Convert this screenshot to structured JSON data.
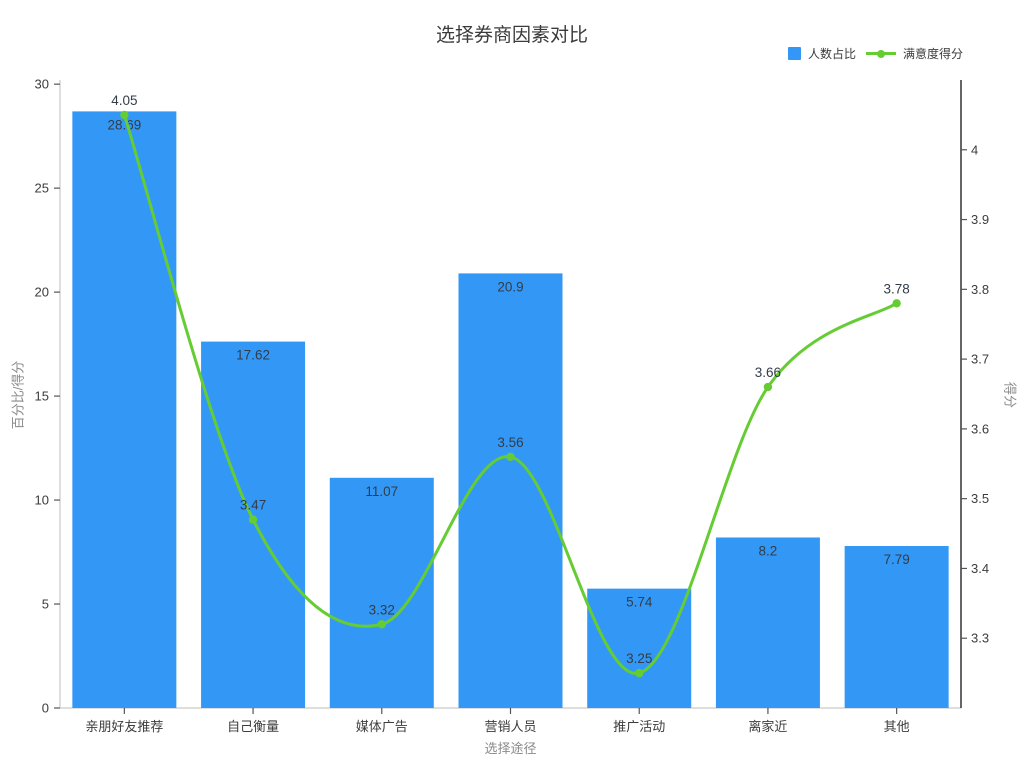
{
  "title": "选择券商因素对比",
  "legend": [
    {
      "label": "人数占比",
      "type": "bar"
    },
    {
      "label": "满意度得分",
      "type": "line"
    }
  ],
  "colors": {
    "bar": "#3398f5",
    "line": "#66cc33",
    "value_label": "#333c48",
    "tick_label": "#3c3c3c",
    "axis_light": "#d4d4d4",
    "axis_dark": "#333333"
  },
  "chart_data": {
    "type": "bar+line",
    "title": "选择券商因素对比",
    "xlabel": "选择途径",
    "ylabel_left": "百分比/得分",
    "ylabel_right": "得分",
    "categories": [
      "亲朋好友推荐",
      "自己衡量",
      "媒体广告",
      "营销人员",
      "推广活动",
      "离家近",
      "其他"
    ],
    "series": [
      {
        "name": "人数占比",
        "type": "bar",
        "axis": "left",
        "values": [
          28.69,
          17.62,
          11.07,
          20.9,
          5.74,
          8.2,
          7.79
        ]
      },
      {
        "name": "满意度得分",
        "type": "line",
        "axis": "right",
        "values": [
          4.05,
          3.47,
          3.32,
          3.56,
          3.25,
          3.66,
          3.78
        ]
      }
    ],
    "axis_left": {
      "min": 0,
      "max": 30.2,
      "ticks": [
        0,
        5,
        10,
        15,
        20,
        25,
        30
      ]
    },
    "axis_right": {
      "min": 3.2,
      "max": 4.1,
      "ticks": [
        3.3,
        3.4,
        3.5,
        3.6,
        3.7,
        3.8,
        3.9,
        4
      ]
    },
    "grid": false,
    "legend_position": "top-right"
  }
}
